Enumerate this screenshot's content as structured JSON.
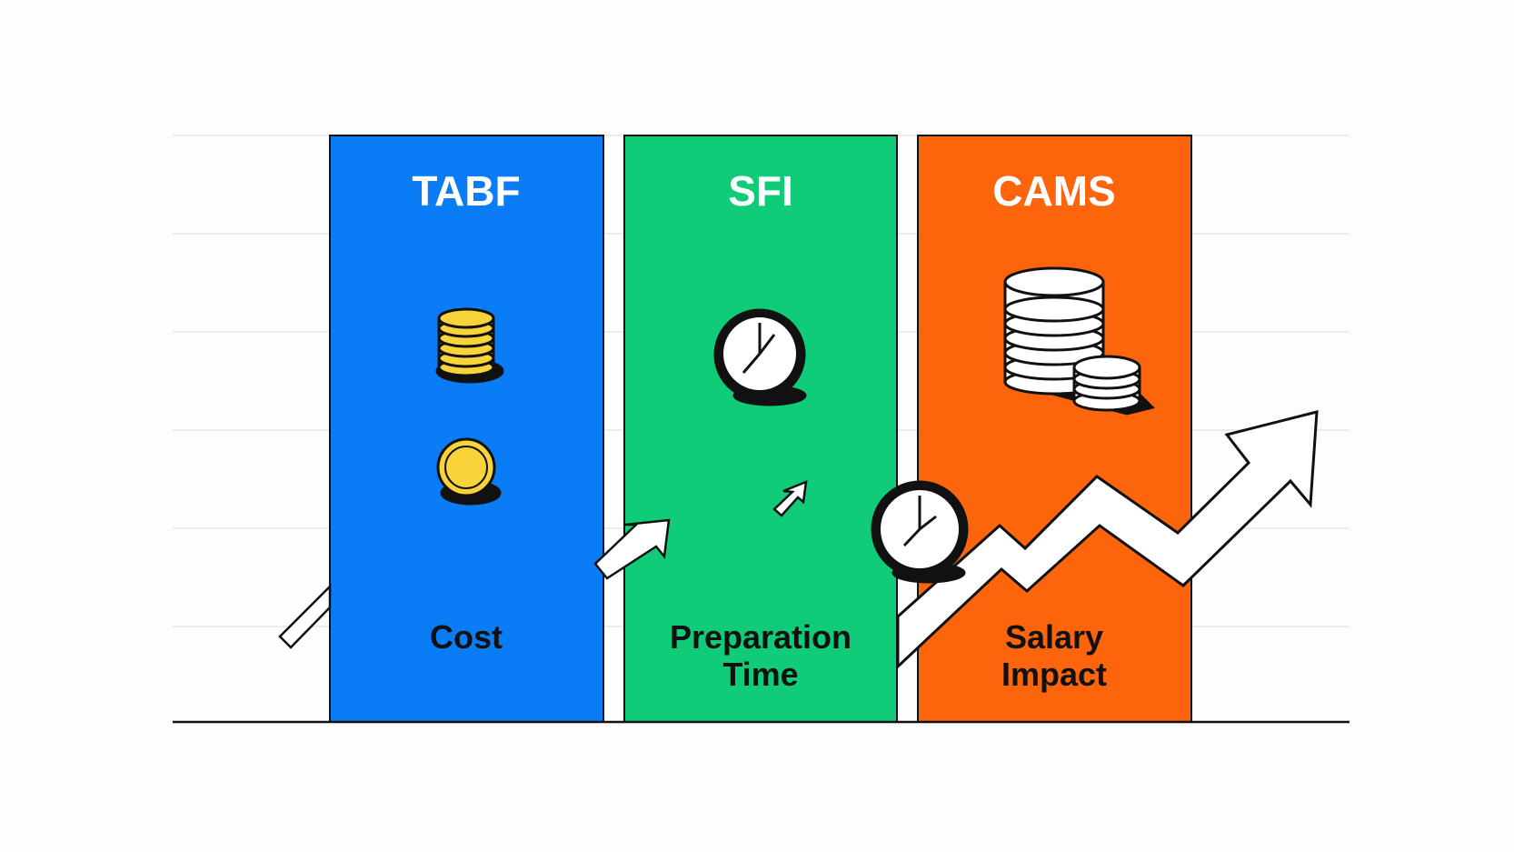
{
  "columns": [
    {
      "title": "TABF",
      "label_lines": [
        "Cost"
      ],
      "color": "#0a7cf5",
      "icon": "coin-stack-icon"
    },
    {
      "title": "SFI",
      "label_lines": [
        "Preparation",
        "Time"
      ],
      "color": "#10cc78",
      "icon": "clock-icon"
    },
    {
      "title": "CAMS",
      "label_lines": [
        "Salary",
        "Impact"
      ],
      "color": "#fd650c",
      "icon": "large-coin-stack-icon"
    }
  ],
  "colors": {
    "background": "#fdfdfd",
    "gridline": "#ececec",
    "outline": "#111111",
    "coin": "#f8d33a"
  }
}
